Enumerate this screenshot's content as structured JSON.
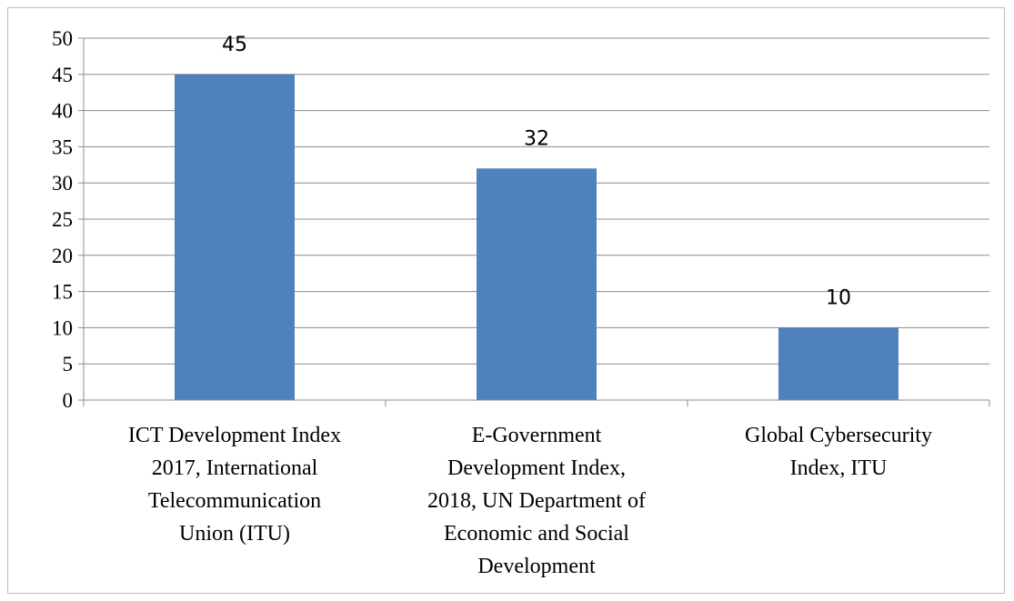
{
  "chart_data": {
    "type": "bar",
    "categories": [
      [
        "ICT Development Index",
        "2017, International",
        "Telecommunication",
        "Union (ITU)"
      ],
      [
        "E-Government",
        "Development Index,",
        "2018, UN Department of",
        "Economic and Social",
        "Development"
      ],
      [
        "Global Cybersecurity",
        "Index, ITU"
      ]
    ],
    "values": [
      45,
      32,
      10
    ],
    "ylim": [
      0,
      50
    ],
    "yticks": [
      0,
      5,
      10,
      15,
      20,
      25,
      30,
      35,
      40,
      45,
      50
    ],
    "grid": true,
    "data_labels": true,
    "colors": {
      "bar": "#4f81bd",
      "grid": "#8c8c8c",
      "axis": "#8c8c8c"
    }
  }
}
